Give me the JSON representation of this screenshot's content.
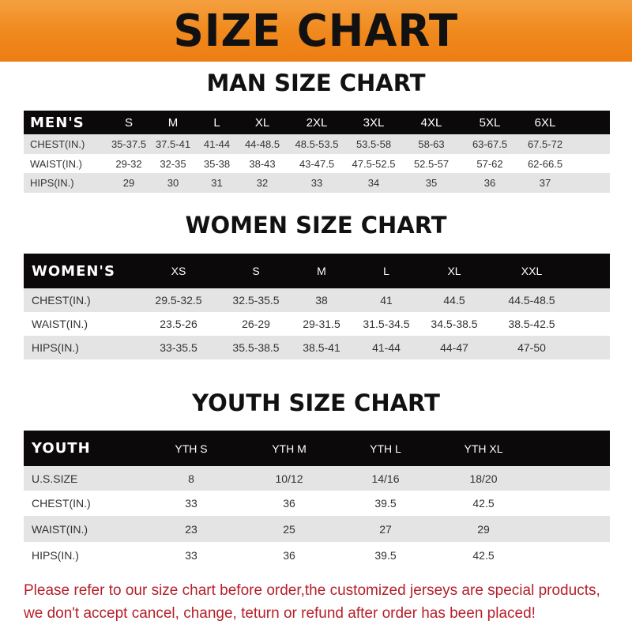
{
  "title": "SIZE CHART",
  "men": {
    "title": "MAN SIZE CHART",
    "header": [
      "MEN'S",
      "S",
      "M",
      "L",
      "XL",
      "2XL",
      "3XL",
      "4XL",
      "5XL",
      "6XL"
    ],
    "rows": [
      [
        "CHEST(IN.)",
        "35-37.5",
        "37.5-41",
        "41-44",
        "44-48.5",
        "48.5-53.5",
        "53.5-58",
        "58-63",
        "63-67.5",
        "67.5-72"
      ],
      [
        "WAIST(IN.)",
        "29-32",
        "32-35",
        "35-38",
        "38-43",
        "43-47.5",
        "47.5-52.5",
        "52.5-57",
        "57-62",
        "62-66.5"
      ],
      [
        "HIPS(IN.)",
        "29",
        "30",
        "31",
        "32",
        "33",
        "34",
        "35",
        "36",
        "37"
      ]
    ]
  },
  "women": {
    "title": "WOMEN SIZE CHART",
    "header": [
      "WOMEN'S",
      "XS",
      "S",
      "M",
      "L",
      "XL",
      "XXL"
    ],
    "rows": [
      [
        "CHEST(IN.)",
        "29.5-32.5",
        "32.5-35.5",
        "38",
        "41",
        "44.5",
        "44.5-48.5"
      ],
      [
        "WAIST(IN.)",
        "23.5-26",
        "26-29",
        "29-31.5",
        "31.5-34.5",
        "34.5-38.5",
        "38.5-42.5"
      ],
      [
        "HIPS(IN.)",
        "33-35.5",
        "35.5-38.5",
        "38.5-41",
        "41-44",
        "44-47",
        "47-50"
      ]
    ]
  },
  "youth": {
    "title": "YOUTH SIZE CHART",
    "header": [
      "YOUTH",
      "YTH S",
      "YTH M",
      "YTH L",
      "YTH XL"
    ],
    "rows": [
      [
        "U.S.SIZE",
        "8",
        "10/12",
        "14/16",
        "18/20"
      ],
      [
        "CHEST(IN.)",
        "33",
        "36",
        "39.5",
        "42.5"
      ],
      [
        "WAIST(IN.)",
        "23",
        "25",
        "27",
        "29"
      ],
      [
        "HIPS(IN.)",
        "33",
        "36",
        "39.5",
        "42.5"
      ]
    ]
  },
  "note": [
    "Please refer to our size chart before order,the customized jerseys are special products,",
    "we don't accept cancel, change, teturn or refund after order has been placed!"
  ]
}
